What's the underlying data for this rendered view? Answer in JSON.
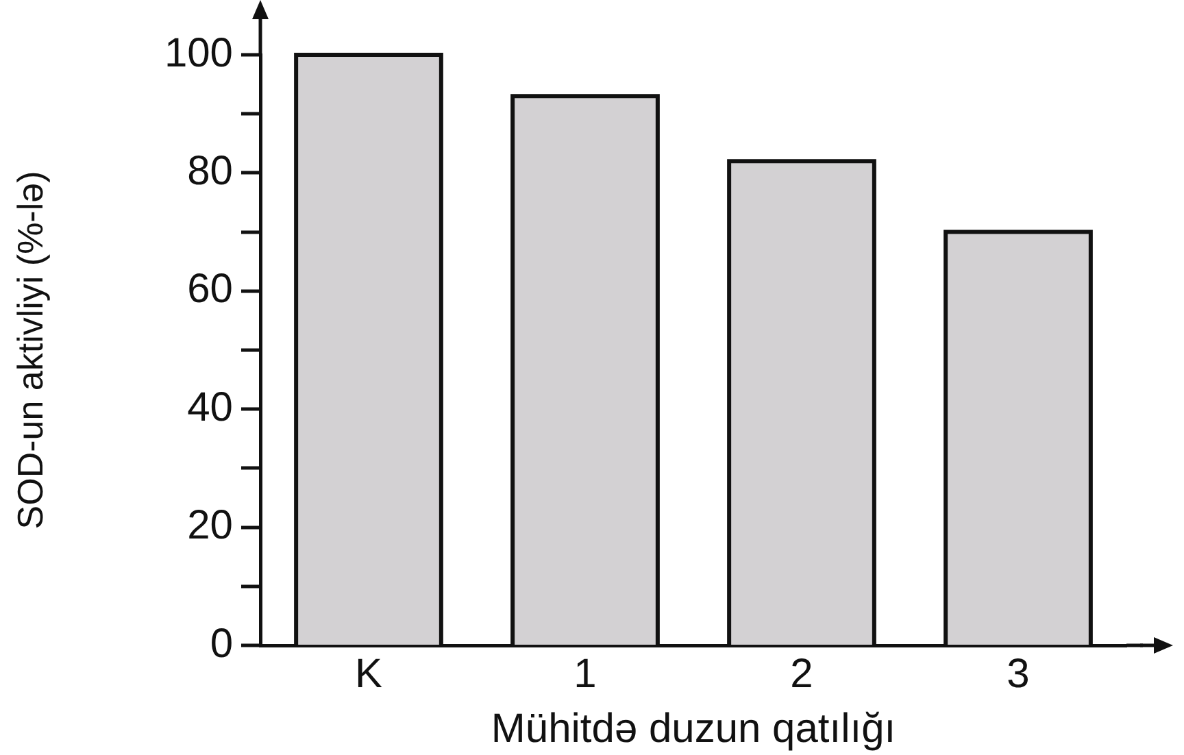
{
  "chart_data": {
    "type": "bar",
    "xlabel": "Mühitdə duzun qatılığı",
    "ylabel": "SOD-un aktivliyi (%-lə)",
    "categories": [
      "K",
      "1",
      "2",
      "3"
    ],
    "values": [
      100,
      93,
      82,
      70
    ],
    "color": "#d3d1d3",
    "ylim": [
      0,
      100
    ],
    "yticks": [
      0,
      {
        "value": 10,
        "label": null
      },
      20,
      {
        "value": 30,
        "label": null
      },
      40,
      {
        "value": 50,
        "label": null
      },
      60,
      {
        "value": 70,
        "label": null
      },
      80,
      {
        "value": 90,
        "label": null
      },
      100
    ]
  }
}
